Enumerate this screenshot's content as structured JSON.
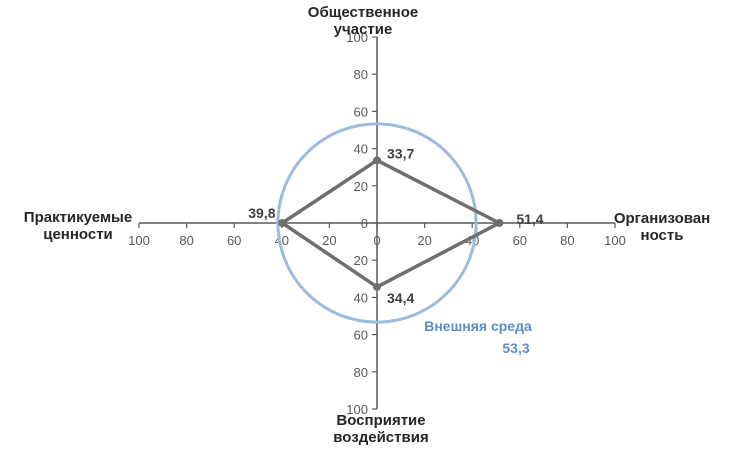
{
  "chart_data": {
    "type": "radar",
    "scale_max": 100,
    "ticks": [
      "100",
      "80",
      "60",
      "40",
      "20",
      "0",
      "20",
      "40",
      "60",
      "80",
      "100"
    ],
    "axes": [
      {
        "key": "top",
        "title_lines": [
          "Общественное",
          "участие"
        ],
        "value": 33.7,
        "value_label": "33,7"
      },
      {
        "key": "right",
        "title_lines": [
          "Организован",
          "ность"
        ],
        "value": 51.4,
        "value_label": "51,4"
      },
      {
        "key": "bottom",
        "title_lines": [
          "Восприятие",
          "воздействия"
        ],
        "value": 34.4,
        "value_label": "34,4"
      },
      {
        "key": "left",
        "title_lines": [
          "Практикуемые",
          "ценности"
        ],
        "value": 39.8,
        "value_label": "39,8"
      }
    ],
    "environment": {
      "label": "Внешняя среда",
      "value": 53.3,
      "value_label": "53,3",
      "color": "#9dbbdc"
    },
    "series_color": "#6e6e6e",
    "axis_color": "#595959"
  }
}
